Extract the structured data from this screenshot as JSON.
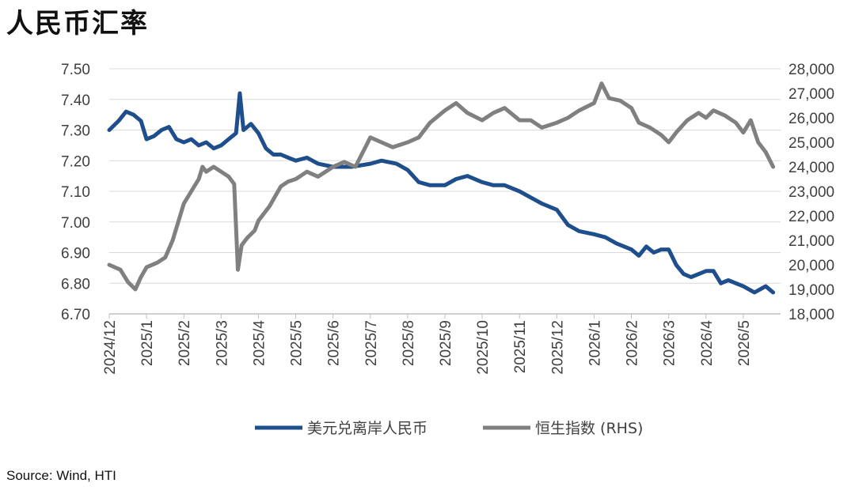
{
  "title": "人民币汇率",
  "source": "Source: Wind, HTI",
  "chart_data": {
    "type": "line",
    "title": "人民币汇率",
    "x_ticks": [
      "2024/12",
      "2025/1",
      "2025/2",
      "2025/3",
      "2025/4",
      "2025/5",
      "2025/6",
      "2025/7",
      "2025/8",
      "2025/9",
      "2025/10",
      "2025/11",
      "2025/12",
      "2026/1",
      "2026/2",
      "2026/3",
      "2026/4",
      "2026/5"
    ],
    "y_left": {
      "ticks": [
        "7.50",
        "7.40",
        "7.30",
        "7.20",
        "7.10",
        "7.00",
        "6.90",
        "6.80",
        "6.70"
      ],
      "range": [
        6.7,
        7.5
      ]
    },
    "y_right": {
      "ticks": [
        "28,000",
        "27,000",
        "26,000",
        "25,000",
        "24,000",
        "23,000",
        "22,000",
        "21,000",
        "20,000",
        "19,000",
        "18,000"
      ],
      "range": [
        18000,
        28000
      ]
    },
    "grid": true,
    "legend_position": "bottom",
    "series": [
      {
        "name": "美元兑离岸人民币",
        "axis": "left",
        "color": "#1F4E8C",
        "points": [
          [
            "2024/12",
            7.3
          ],
          [
            "2024/12.25",
            7.33
          ],
          [
            "2024/12.45",
            7.36
          ],
          [
            "2024/12.65",
            7.35
          ],
          [
            "2024/12.85",
            7.33
          ],
          [
            "2025/1",
            7.27
          ],
          [
            "2025/1.2",
            7.28
          ],
          [
            "2025/1.4",
            7.3
          ],
          [
            "2025/1.6",
            7.31
          ],
          [
            "2025/1.8",
            7.27
          ],
          [
            "2025/2",
            7.26
          ],
          [
            "2025/2.2",
            7.27
          ],
          [
            "2025/2.4",
            7.25
          ],
          [
            "2025/2.6",
            7.26
          ],
          [
            "2025/2.8",
            7.24
          ],
          [
            "2025/3",
            7.25
          ],
          [
            "2025/3.2",
            7.27
          ],
          [
            "2025/3.4",
            7.29
          ],
          [
            "2025/3.5",
            7.42
          ],
          [
            "2025/3.6",
            7.3
          ],
          [
            "2025/3.8",
            7.32
          ],
          [
            "2025/4",
            7.29
          ],
          [
            "2025/4.2",
            7.24
          ],
          [
            "2025/4.4",
            7.22
          ],
          [
            "2025/4.6",
            7.22
          ],
          [
            "2025/4.8",
            7.21
          ],
          [
            "2025/5",
            7.2
          ],
          [
            "2025/5.3",
            7.21
          ],
          [
            "2025/5.6",
            7.19
          ],
          [
            "2025/6",
            7.18
          ],
          [
            "2025/6.5",
            7.18
          ],
          [
            "2025/7",
            7.19
          ],
          [
            "2025/7.3",
            7.2
          ],
          [
            "2025/7.7",
            7.19
          ],
          [
            "2025/8",
            7.17
          ],
          [
            "2025/8.3",
            7.13
          ],
          [
            "2025/8.6",
            7.12
          ],
          [
            "2025/9",
            7.12
          ],
          [
            "2025/9.3",
            7.14
          ],
          [
            "2025/9.6",
            7.15
          ],
          [
            "2025/10",
            7.13
          ],
          [
            "2025/10.3",
            7.12
          ],
          [
            "2025/10.6",
            7.12
          ],
          [
            "2025/11",
            7.1
          ],
          [
            "2025/11.3",
            7.08
          ],
          [
            "2025/11.6",
            7.06
          ],
          [
            "2025/12",
            7.04
          ],
          [
            "2025/12.3",
            6.99
          ],
          [
            "2025/12.6",
            6.97
          ],
          [
            "2026/1",
            6.96
          ],
          [
            "2026/1.3",
            6.95
          ],
          [
            "2026/1.6",
            6.93
          ],
          [
            "2026/2",
            6.91
          ],
          [
            "2026/2.2",
            6.89
          ],
          [
            "2026/2.4",
            6.92
          ],
          [
            "2026/2.6",
            6.9
          ],
          [
            "2026/2.8",
            6.91
          ],
          [
            "2026/3",
            6.91
          ],
          [
            "2026/3.2",
            6.86
          ],
          [
            "2026/3.4",
            6.83
          ],
          [
            "2026/3.6",
            6.82
          ],
          [
            "2026/4",
            6.84
          ],
          [
            "2026/4.2",
            6.84
          ],
          [
            "2026/4.4",
            6.8
          ],
          [
            "2026/4.6",
            6.81
          ],
          [
            "2026/4.8",
            6.8
          ],
          [
            "2026/5",
            6.79
          ],
          [
            "2026/5.3",
            6.77
          ],
          [
            "2026/5.6",
            6.79
          ],
          [
            "2026/5.8",
            6.77
          ]
        ]
      },
      {
        "name": "恒生指数 (RHS)",
        "axis": "right",
        "color": "#808080",
        "points": [
          [
            "2024/12",
            20000
          ],
          [
            "2024/12.3",
            19800
          ],
          [
            "2024/12.5",
            19300
          ],
          [
            "2024/12.7",
            19000
          ],
          [
            "2024/12.85",
            19500
          ],
          [
            "2025/1",
            19900
          ],
          [
            "2025/1.3",
            20100
          ],
          [
            "2025/1.5",
            20300
          ],
          [
            "2025/1.7",
            21000
          ],
          [
            "2025/1.9",
            22000
          ],
          [
            "2025/2",
            22500
          ],
          [
            "2025/2.2",
            23000
          ],
          [
            "2025/2.4",
            23500
          ],
          [
            "2025/2.5",
            24000
          ],
          [
            "2025/2.6",
            23800
          ],
          [
            "2025/2.8",
            24000
          ],
          [
            "2025/3",
            23800
          ],
          [
            "2025/3.2",
            23600
          ],
          [
            "2025/3.35",
            23300
          ],
          [
            "2025/3.45",
            19800
          ],
          [
            "2025/3.55",
            20800
          ],
          [
            "2025/3.7",
            21100
          ],
          [
            "2025/3.9",
            21400
          ],
          [
            "2025/4",
            21800
          ],
          [
            "2025/4.3",
            22400
          ],
          [
            "2025/4.6",
            23200
          ],
          [
            "2025/4.8",
            23400
          ],
          [
            "2025/5",
            23500
          ],
          [
            "2025/5.3",
            23800
          ],
          [
            "2025/5.6",
            23600
          ],
          [
            "2025/6",
            24000
          ],
          [
            "2025/6.3",
            24200
          ],
          [
            "2025/6.6",
            24000
          ],
          [
            "2025/6.8",
            24600
          ],
          [
            "2025/7",
            25200
          ],
          [
            "2025/7.3",
            25000
          ],
          [
            "2025/7.6",
            24800
          ],
          [
            "2025/8",
            25000
          ],
          [
            "2025/8.3",
            25200
          ],
          [
            "2025/8.6",
            25800
          ],
          [
            "2025/9",
            26300
          ],
          [
            "2025/9.3",
            26600
          ],
          [
            "2025/9.6",
            26200
          ],
          [
            "2025/10",
            25900
          ],
          [
            "2025/10.3",
            26200
          ],
          [
            "2025/10.6",
            26400
          ],
          [
            "2025/11",
            25900
          ],
          [
            "2025/11.3",
            25900
          ],
          [
            "2025/11.6",
            25600
          ],
          [
            "2025/12",
            25800
          ],
          [
            "2025/12.3",
            26000
          ],
          [
            "2025/12.6",
            26300
          ],
          [
            "2026/1",
            26600
          ],
          [
            "2026/1.2",
            27400
          ],
          [
            "2026/1.4",
            26800
          ],
          [
            "2026/1.7",
            26700
          ],
          [
            "2026/2",
            26400
          ],
          [
            "2026/2.2",
            25800
          ],
          [
            "2026/2.5",
            25600
          ],
          [
            "2026/2.8",
            25300
          ],
          [
            "2026/3",
            25000
          ],
          [
            "2026/3.2",
            25400
          ],
          [
            "2026/3.5",
            25900
          ],
          [
            "2026/3.8",
            26200
          ],
          [
            "2026/4",
            26000
          ],
          [
            "2026/4.2",
            26300
          ],
          [
            "2026/4.5",
            26100
          ],
          [
            "2026/4.8",
            25800
          ],
          [
            "2026/5",
            25400
          ],
          [
            "2026/5.2",
            25900
          ],
          [
            "2026/5.4",
            25000
          ],
          [
            "2026/5.6",
            24600
          ],
          [
            "2026/5.8",
            24000
          ]
        ]
      }
    ]
  }
}
